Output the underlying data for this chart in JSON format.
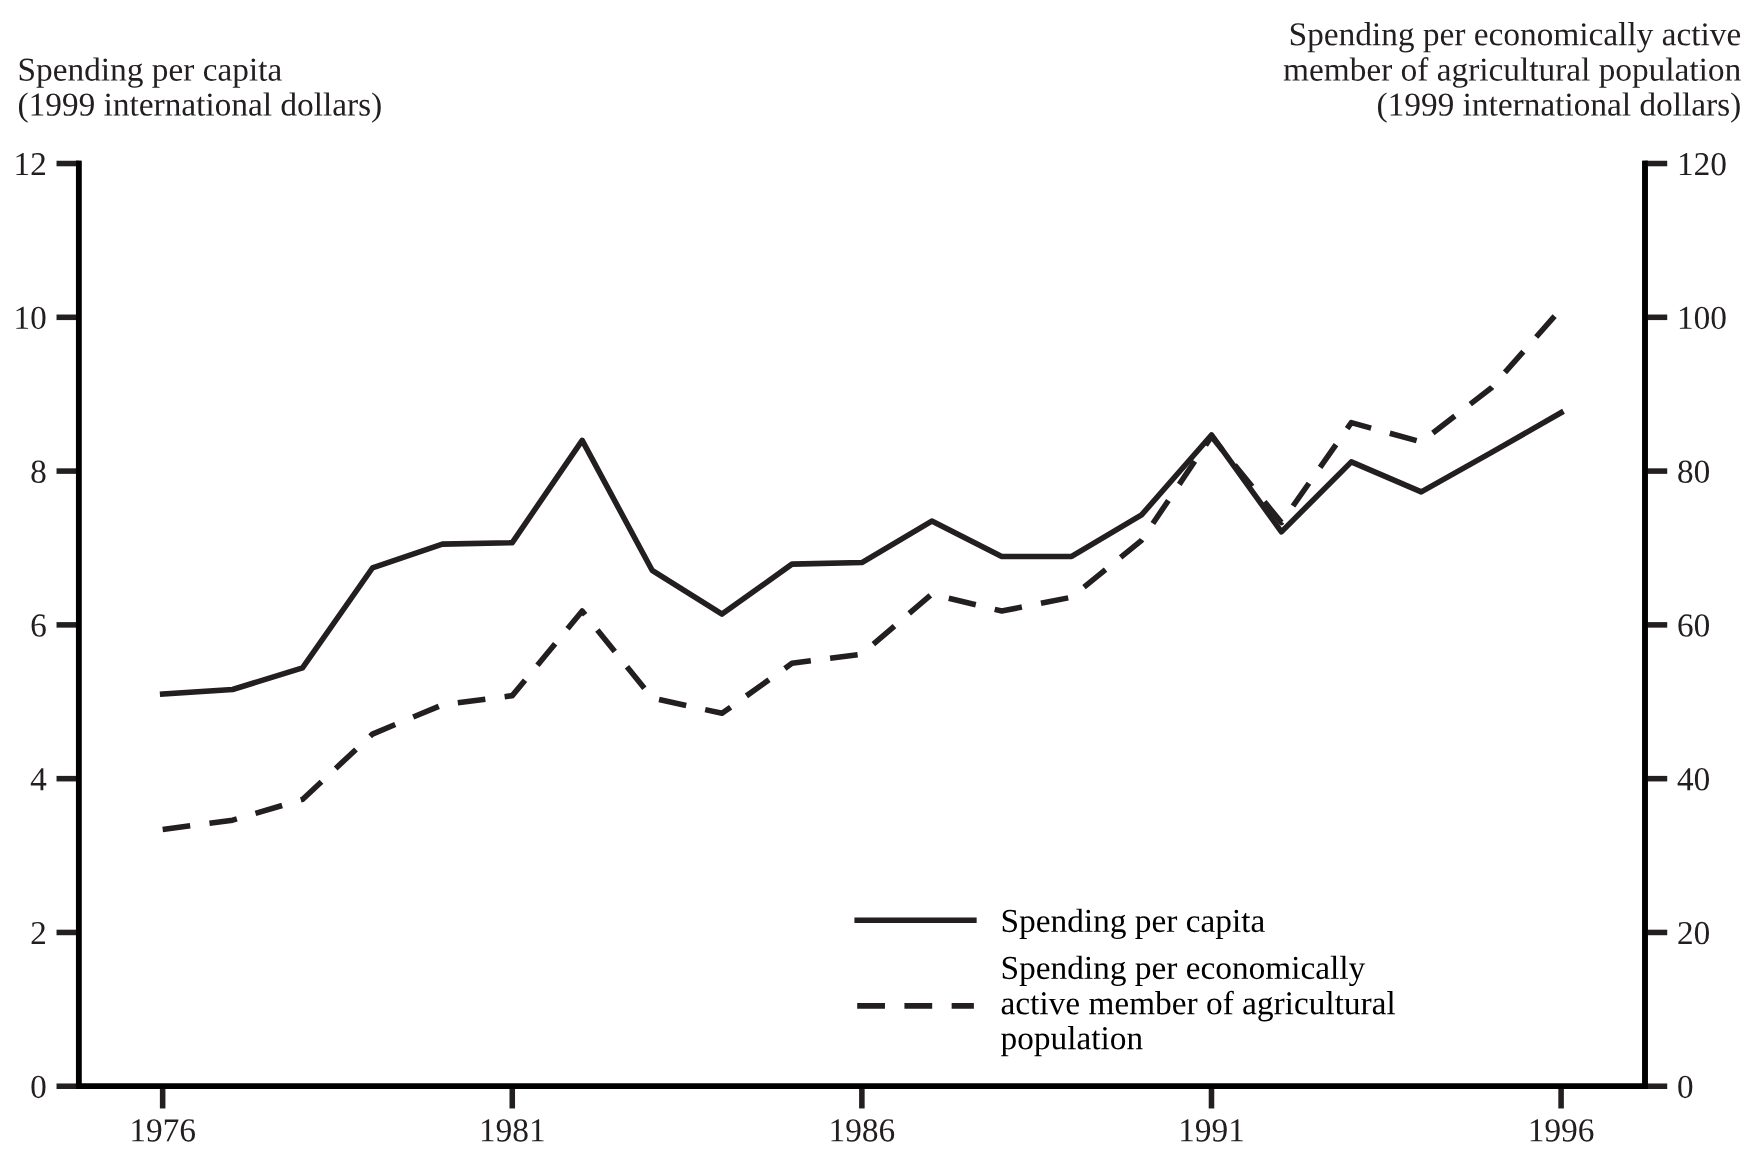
{
  "chart_data": {
    "type": "line",
    "ylabel": "Spending per capita\n(1999 international dollars)",
    "y2label": "Spending per economically active\nmember of agricultural population\n(1999 international dollars)",
    "x": [
      1976,
      1977,
      1978,
      1979,
      1980,
      1981,
      1982,
      1983,
      1984,
      1985,
      1986,
      1987,
      1988,
      1989,
      1990,
      1991,
      1992,
      1993,
      1994,
      1995,
      1996
    ],
    "series": [
      {
        "name": "Spending per capita",
        "color": "#231f20",
        "line_style": "solid",
        "values": [
          5.1,
          5.16,
          5.44,
          6.74,
          7.05,
          7.07,
          8.4,
          6.71,
          6.14,
          6.79,
          6.81,
          7.35,
          6.89,
          6.89,
          7.43,
          8.47,
          7.21,
          8.12,
          7.73,
          8.24,
          8.76
        ]
      },
      {
        "name": "Spending per economically\nactive member of agricultural\npopulation",
        "color": "#231f20",
        "line_style": "dashed",
        "axis": "y2",
        "values": [
          33.4,
          34.6,
          37.3,
          45.8,
          49.6,
          50.8,
          61.8,
          50.5,
          48.5,
          55.0,
          56.2,
          64.0,
          61.8,
          63.6,
          71.0,
          84.5,
          73.3,
          86.3,
          83.8,
          90.8,
          101.1
        ]
      }
    ],
    "xlim": [
      1974.8,
      1997.2
    ],
    "xticks": [
      1976,
      1981,
      1986,
      1991,
      1996
    ],
    "ylim": [
      0,
      12
    ],
    "yticks": [
      0,
      2,
      4,
      6,
      8,
      10,
      12
    ],
    "y2lim": [
      0,
      120
    ],
    "y2ticks": [
      0,
      20,
      40,
      60,
      80,
      100,
      120
    ],
    "grid": false,
    "legend": "bottom right",
    "marker": "none"
  }
}
